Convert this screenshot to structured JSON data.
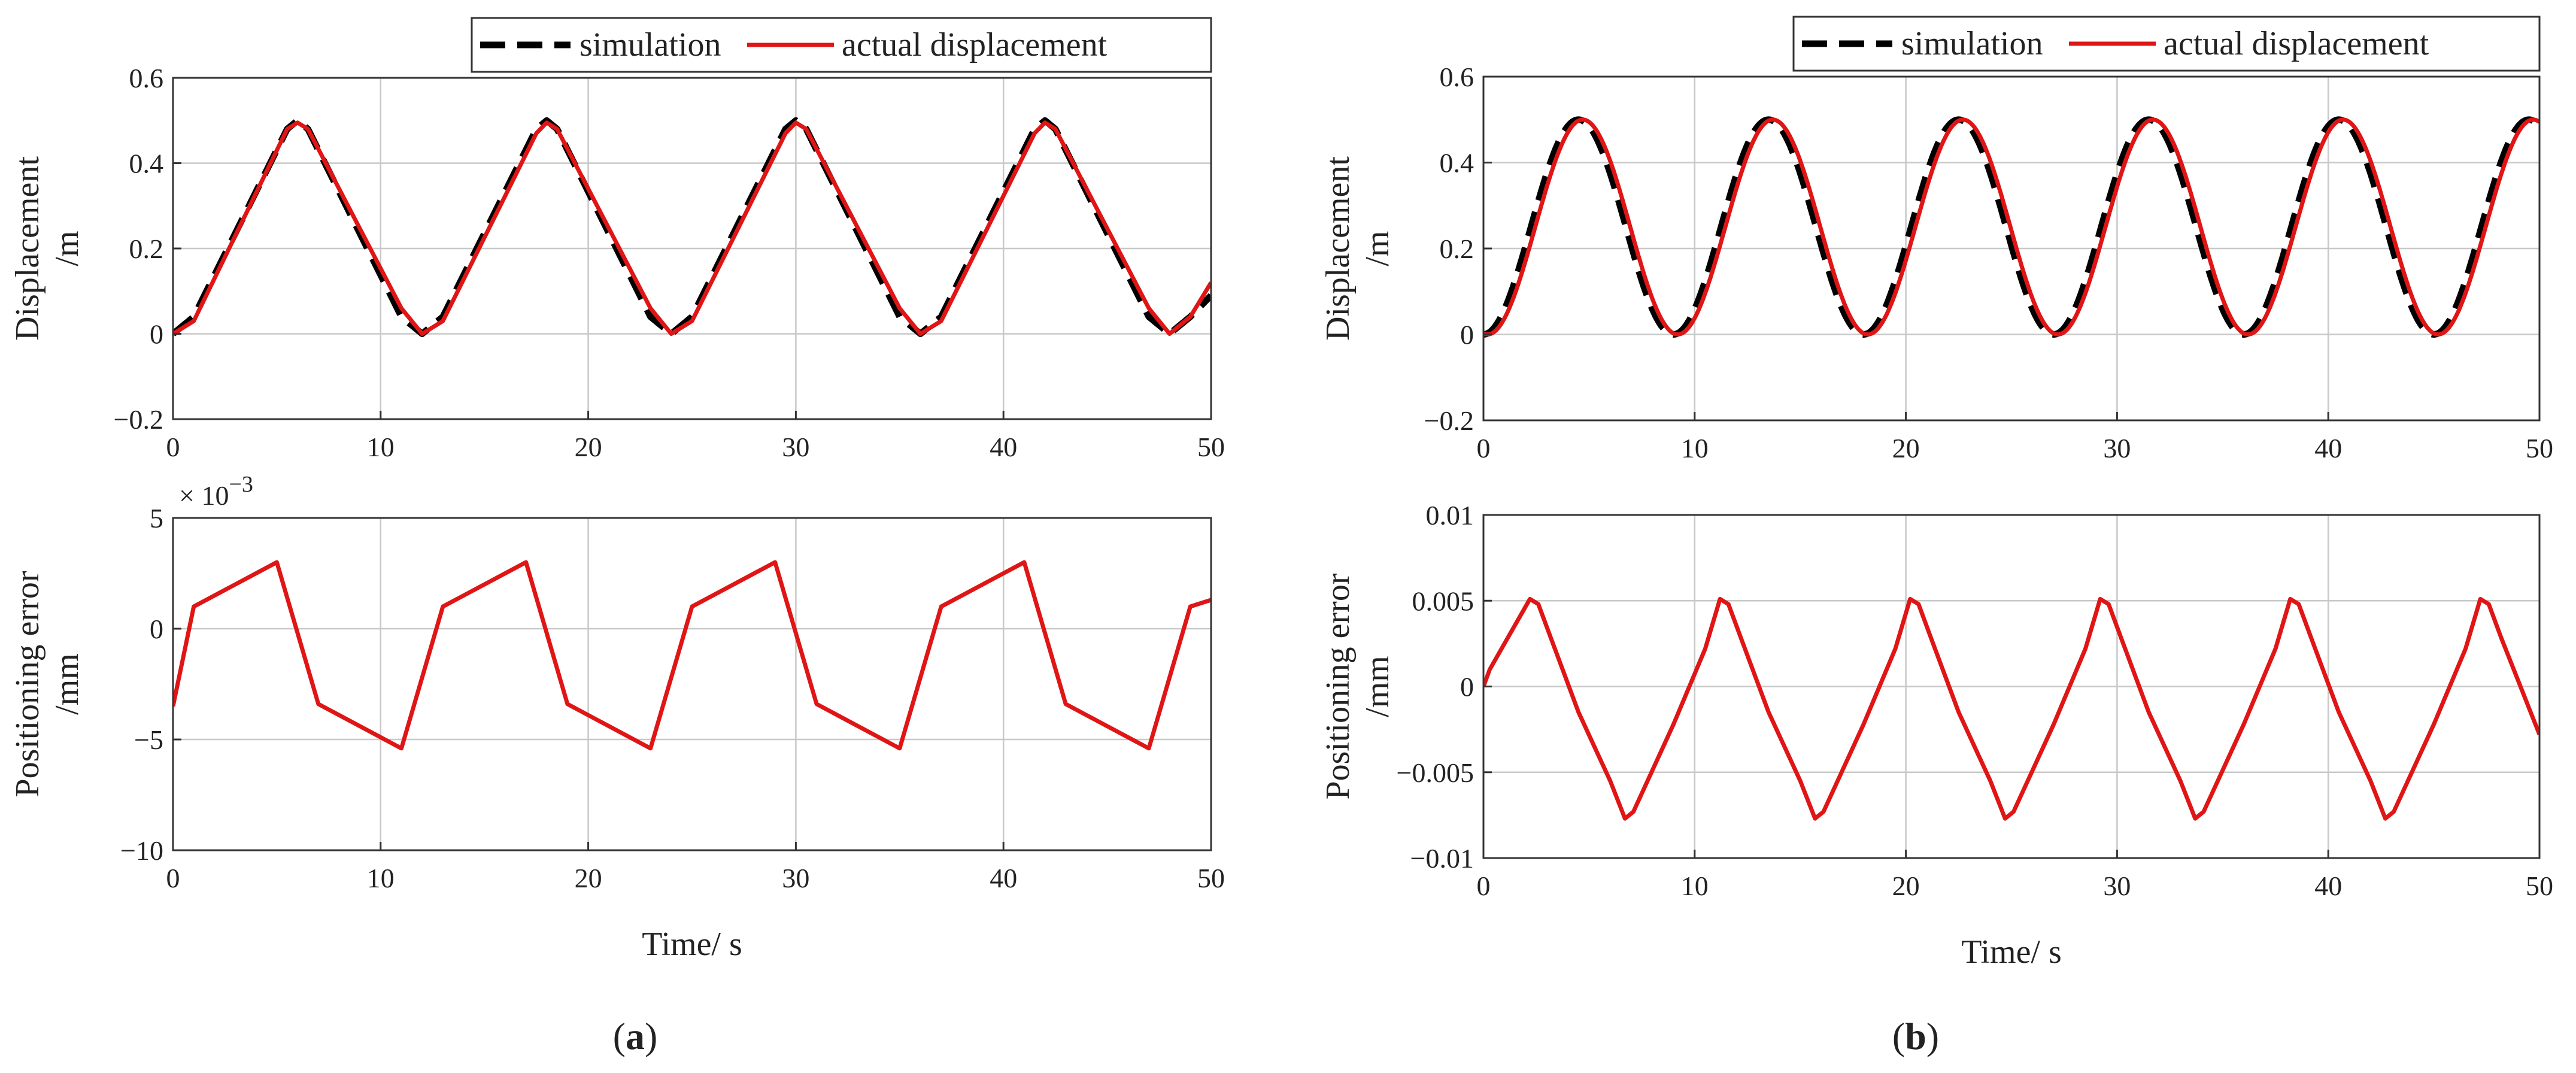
{
  "chart_data": [
    {
      "id": "a-top",
      "type": "line",
      "ylabel": [
        "Displacement",
        "/m"
      ],
      "xlabel": "",
      "xlim": [
        0,
        50
      ],
      "ylim": [
        -0.2,
        0.6
      ],
      "xticks": [
        0,
        10,
        20,
        30,
        40,
        50
      ],
      "yticks": [
        -0.2,
        0,
        0.2,
        0.4,
        0.6
      ],
      "xtick_labels": [
        "0",
        "10",
        "20",
        "30",
        "40",
        "50"
      ],
      "ytick_labels": [
        "−0.2",
        "0",
        "0.2",
        "0.4",
        "0.6"
      ],
      "grid": true,
      "legend": {
        "placement": "top-right",
        "entries": [
          "simulation",
          "actual displacement"
        ]
      },
      "series": [
        {
          "name": "simulation",
          "color": "#000000",
          "style": "dashed",
          "x": [
            0,
            1,
            5.5,
            6,
            6.5,
            11,
            12,
            13,
            17.5,
            18,
            18.5,
            23,
            24,
            25,
            29.5,
            30,
            30.5,
            35,
            36,
            37,
            41.5,
            42,
            42.5,
            47,
            48,
            49,
            50
          ],
          "y": [
            0,
            0.04,
            0.48,
            0.5,
            0.48,
            0.04,
            0,
            0.04,
            0.48,
            0.5,
            0.48,
            0.04,
            0,
            0.04,
            0.48,
            0.5,
            0.48,
            0.04,
            0,
            0.04,
            0.48,
            0.5,
            0.48,
            0.04,
            0,
            0.04,
            0.09
          ]
        },
        {
          "name": "actual displacement",
          "color": "#e01515",
          "style": "solid",
          "x": [
            0,
            1,
            5.5,
            6,
            6.5,
            11,
            12,
            13,
            17.5,
            18,
            18.5,
            23,
            24,
            25,
            29.5,
            30,
            30.5,
            35,
            36,
            37,
            41.5,
            42,
            42.5,
            47,
            48,
            49,
            50
          ],
          "y": [
            0,
            0.03,
            0.48,
            0.495,
            0.48,
            0.06,
            0,
            0.03,
            0.47,
            0.495,
            0.48,
            0.06,
            0,
            0.03,
            0.47,
            0.495,
            0.48,
            0.06,
            0,
            0.03,
            0.47,
            0.495,
            0.48,
            0.06,
            0,
            0.04,
            0.12
          ]
        }
      ]
    },
    {
      "id": "a-bottom",
      "type": "line",
      "ylabel": [
        "Positioning error",
        "/mm"
      ],
      "xlabel": "Time/ s",
      "xlim": [
        0,
        50
      ],
      "ylim": [
        -10,
        5
      ],
      "xticks": [
        0,
        10,
        20,
        30,
        40,
        50
      ],
      "yticks": [
        -10,
        -5,
        0,
        5
      ],
      "xtick_labels": [
        "0",
        "10",
        "20",
        "30",
        "40",
        "50"
      ],
      "ytick_labels": [
        "−10",
        "−5",
        "0",
        "5"
      ],
      "exponent_label": {
        "base": "× 10",
        "power": "−3"
      },
      "grid": true,
      "series": [
        {
          "name": "positioning error",
          "color": "#e01515",
          "style": "solid",
          "x": [
            0,
            1,
            5,
            7,
            11,
            13,
            17,
            19,
            23,
            25,
            29,
            31,
            35,
            37,
            41,
            43,
            47,
            49,
            50
          ],
          "y": [
            -3.5,
            1,
            3,
            -3.4,
            -5.4,
            1,
            3,
            -3.4,
            -5.4,
            1,
            3,
            -3.4,
            -5.4,
            1,
            3,
            -3.4,
            -5.4,
            1,
            1.3
          ]
        }
      ]
    },
    {
      "id": "b-top",
      "type": "line",
      "ylabel": [
        "Displacement",
        "/m"
      ],
      "xlabel": "",
      "xlim": [
        0,
        50
      ],
      "ylim": [
        -0.2,
        0.6
      ],
      "xticks": [
        0,
        10,
        20,
        30,
        40,
        50
      ],
      "yticks": [
        -0.2,
        0,
        0.2,
        0.4,
        0.6
      ],
      "xtick_labels": [
        "0",
        "10",
        "20",
        "30",
        "40",
        "50"
      ],
      "ytick_labels": [
        "−0.2",
        "0",
        "0.2",
        "0.4",
        "0.6"
      ],
      "grid": true,
      "legend": {
        "placement": "top-right",
        "entries": [
          "simulation",
          "actual displacement"
        ]
      },
      "series": [
        {
          "name": "simulation",
          "color": "#000000",
          "style": "dashed",
          "function": "0.25*(1-cos(2*pi*t/9))",
          "period": 9,
          "amplitude": 0.25,
          "offset": 0.25,
          "phase_shift": 0
        },
        {
          "name": "actual displacement",
          "color": "#e01515",
          "style": "solid",
          "function": "0.25*(1-cos(2*pi*(t-0.2)/9))",
          "period": 9,
          "amplitude": 0.25,
          "offset": 0.25,
          "phase_shift": 0.2
        }
      ]
    },
    {
      "id": "b-bottom",
      "type": "line",
      "ylabel": [
        "Positioning error",
        "/mm"
      ],
      "xlabel": "Time/ s",
      "xlim": [
        0,
        50
      ],
      "ylim": [
        -0.01,
        0.01
      ],
      "xticks": [
        0,
        10,
        20,
        30,
        40,
        50
      ],
      "yticks": [
        -0.01,
        -0.005,
        0,
        0.005,
        0.01
      ],
      "xtick_labels": [
        "0",
        "10",
        "20",
        "30",
        "40",
        "50"
      ],
      "ytick_labels": [
        "−0.01",
        "−0.005",
        "0",
        "0.005",
        "0.01"
      ],
      "grid": true,
      "series": [
        {
          "name": "positioning error",
          "color": "#e01515",
          "style": "solid",
          "x": [
            0,
            0.3,
            2.2,
            2.6,
            3.2,
            4.5,
            6,
            6.7,
            7.1,
            9,
            10.5,
            11.2,
            11.6,
            12.2,
            13.5,
            15,
            15.7,
            16.1,
            18,
            19.5,
            20.2,
            20.6,
            21.2,
            22.5,
            24,
            24.7,
            25.1,
            27,
            28.5,
            29.2,
            29.6,
            30.2,
            31.5,
            33,
            33.7,
            34.1,
            36,
            37.5,
            38.2,
            38.6,
            39.2,
            40.5,
            42,
            42.7,
            43.1,
            45,
            46.5,
            47.2,
            47.6,
            48.2,
            50
          ],
          "y": [
            0,
            0.001,
            0.0051,
            0.0048,
            0.0028,
            -0.0015,
            -0.0055,
            -0.0077,
            -0.0073,
            -0.0022,
            0.0022,
            0.0051,
            0.0048,
            0.0028,
            -0.0015,
            -0.0055,
            -0.0077,
            -0.0073,
            -0.0022,
            0.0022,
            0.0051,
            0.0048,
            0.0028,
            -0.0015,
            -0.0055,
            -0.0077,
            -0.0073,
            -0.0022,
            0.0022,
            0.0051,
            0.0048,
            0.0028,
            -0.0015,
            -0.0055,
            -0.0077,
            -0.0073,
            -0.0022,
            0.0022,
            0.0051,
            0.0048,
            0.0028,
            -0.0015,
            -0.0055,
            -0.0077,
            -0.0073,
            -0.0022,
            0.0022,
            0.0051,
            0.0048,
            0.0028,
            -0.0028
          ]
        }
      ]
    }
  ],
  "panel_labels": [
    "a",
    "b"
  ]
}
